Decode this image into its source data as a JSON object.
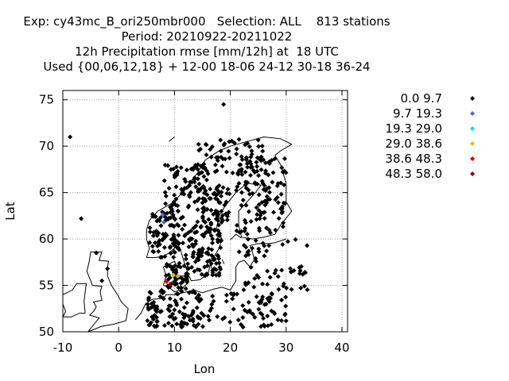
{
  "chart_data": {
    "type": "scatter",
    "title_lines": [
      "Exp: cy43mc_B_ori250mbr000   Selection: ALL    813 stations",
      "Period: 20210922-20211022",
      "12h Precipitation rmse [mm/12h] at  18 UTC",
      "Used {00,06,12,18} + 12-00 18-06 24-12 30-18 36-24"
    ],
    "xlabel": "Lon",
    "ylabel": "Lat",
    "xlim": [
      -10,
      41
    ],
    "ylim": [
      50,
      76
    ],
    "xticks": [
      -10,
      0,
      10,
      20,
      30,
      40
    ],
    "yticks": [
      50,
      55,
      60,
      65,
      70,
      75
    ],
    "grid": true,
    "legend_position": "right",
    "legend": [
      {
        "label": "0.0 9.7",
        "color": "#000000"
      },
      {
        "label": "9.7 19.3",
        "color": "#4169e1"
      },
      {
        "label": "19.3 29.0",
        "color": "#00e5ee"
      },
      {
        "label": "29.0 38.6",
        "color": "#c8c800"
      },
      {
        "label": "38.6 48.3",
        "color": "#e00000"
      },
      {
        "label": "48.3 58.0",
        "color": "#8b0000"
      }
    ],
    "colored_points": [
      {
        "lon": 7.9,
        "lat": 62.6,
        "class": 1
      },
      {
        "lon": 8.1,
        "lat": 61.8,
        "class": 1
      },
      {
        "lon": 9.8,
        "lat": 56.1,
        "class": 3
      },
      {
        "lon": 10.6,
        "lat": 56.0,
        "class": 3
      },
      {
        "lon": 8.6,
        "lat": 55.4,
        "class": 4
      },
      {
        "lon": 9.2,
        "lat": 55.1,
        "class": 5
      }
    ]
  }
}
